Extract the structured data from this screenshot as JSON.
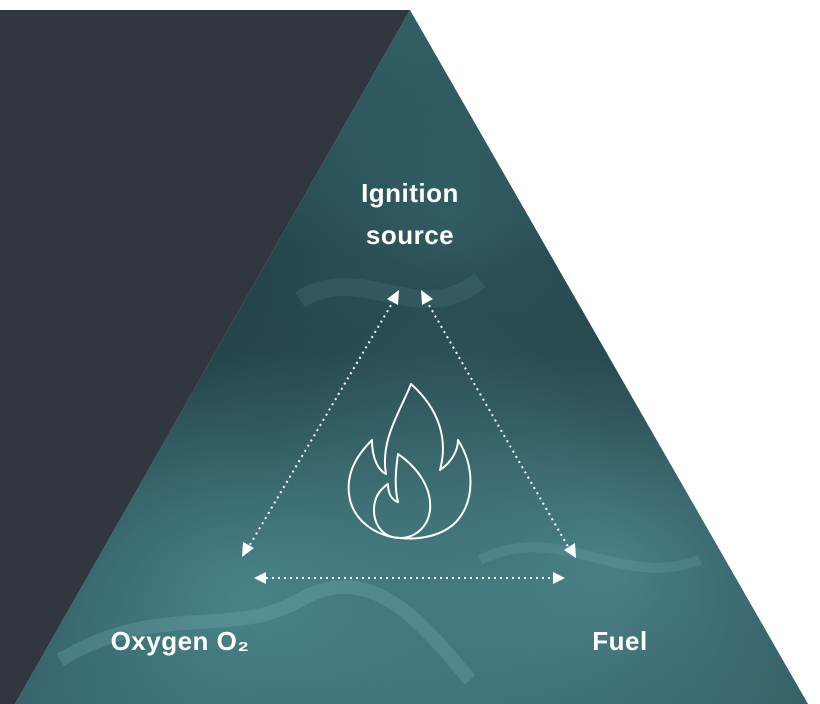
{
  "nodes": [
    {
      "label": "Ignition source"
    },
    {
      "label": "Oxygen O₂"
    },
    {
      "label": "Fuel"
    }
  ]
}
